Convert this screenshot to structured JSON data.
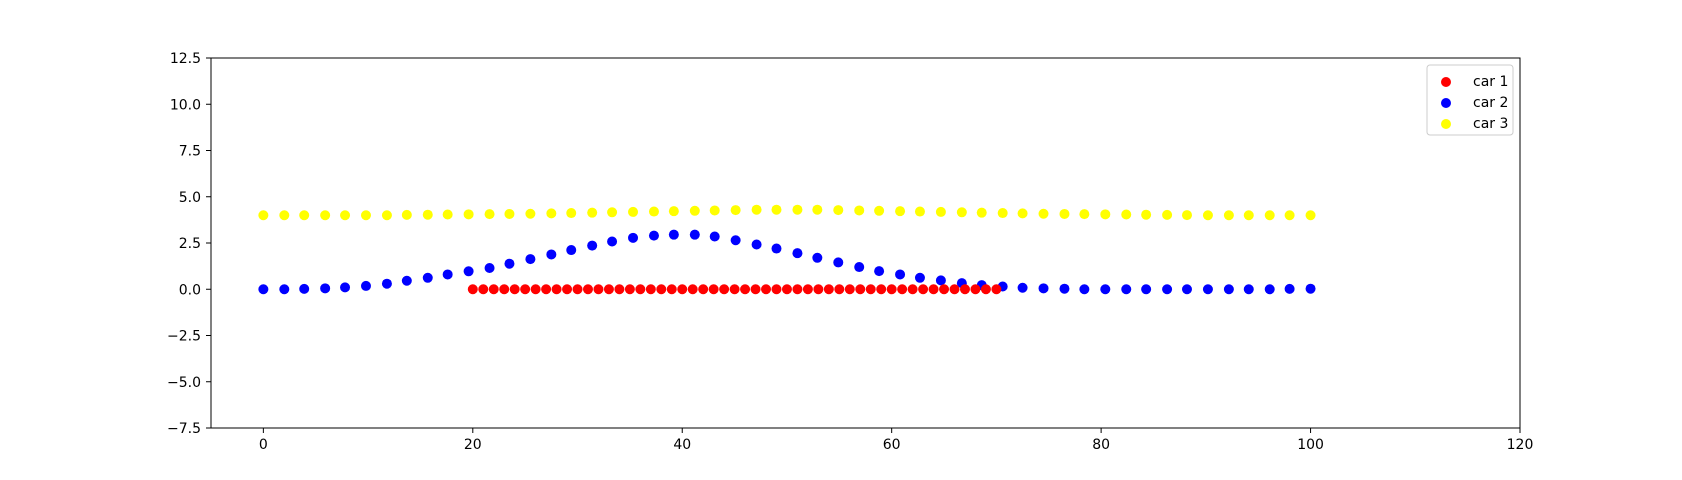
{
  "chart_data": {
    "type": "scatter",
    "title": "",
    "xlabel": "",
    "ylabel": "",
    "xlim": [
      -5,
      120
    ],
    "ylim": [
      -7.5,
      12.5
    ],
    "xticks": [
      "0",
      "20",
      "40",
      "60",
      "80",
      "100",
      "120"
    ],
    "yticks": [
      "12.5",
      "10.0",
      "7.5",
      "5.0",
      "2.5",
      "0.0",
      "−2.5",
      "−5.0",
      "−7.5"
    ],
    "grid": false,
    "legend_position": "top-right",
    "series": [
      {
        "name": "car 1",
        "color": "#ff0000",
        "points": [
          [
            20,
            0
          ],
          [
            21,
            0
          ],
          [
            22,
            0
          ],
          [
            23,
            0
          ],
          [
            24,
            0
          ],
          [
            25,
            0
          ],
          [
            26,
            0
          ],
          [
            27,
            0
          ],
          [
            28,
            0
          ],
          [
            29,
            0
          ],
          [
            30,
            0
          ],
          [
            31,
            0
          ],
          [
            32,
            0
          ],
          [
            33,
            0
          ],
          [
            34,
            0
          ],
          [
            35,
            0
          ],
          [
            36,
            0
          ],
          [
            37,
            0
          ],
          [
            38,
            0
          ],
          [
            39,
            0
          ],
          [
            40,
            0
          ],
          [
            41,
            0
          ],
          [
            42,
            0
          ],
          [
            43,
            0
          ],
          [
            44,
            0
          ],
          [
            45,
            0
          ],
          [
            46,
            0
          ],
          [
            47,
            0
          ],
          [
            48,
            0
          ],
          [
            49,
            0
          ],
          [
            50,
            0
          ],
          [
            51,
            0
          ],
          [
            52,
            0
          ],
          [
            53,
            0
          ],
          [
            54,
            0
          ],
          [
            55,
            0
          ],
          [
            56,
            0
          ],
          [
            57,
            0
          ],
          [
            58,
            0
          ],
          [
            59,
            0
          ],
          [
            60,
            0
          ],
          [
            61,
            0
          ],
          [
            62,
            0
          ],
          [
            63,
            0
          ],
          [
            64,
            0
          ],
          [
            65,
            0
          ],
          [
            66,
            0
          ],
          [
            67,
            0
          ],
          [
            68,
            0
          ],
          [
            69,
            0
          ],
          [
            70,
            0
          ]
        ]
      },
      {
        "name": "car 2",
        "color": "#0000ff",
        "points": [
          [
            0,
            0.0
          ],
          [
            2,
            0.0
          ],
          [
            3.9,
            0.02
          ],
          [
            5.9,
            0.05
          ],
          [
            7.8,
            0.1
          ],
          [
            9.8,
            0.18
          ],
          [
            11.8,
            0.3
          ],
          [
            13.7,
            0.46
          ],
          [
            15.7,
            0.62
          ],
          [
            17.6,
            0.8
          ],
          [
            19.6,
            0.97
          ],
          [
            21.6,
            1.15
          ],
          [
            23.5,
            1.38
          ],
          [
            25.5,
            1.63
          ],
          [
            27.5,
            1.88
          ],
          [
            29.4,
            2.12
          ],
          [
            31.4,
            2.36
          ],
          [
            33.3,
            2.58
          ],
          [
            35.3,
            2.78
          ],
          [
            37.3,
            2.9
          ],
          [
            39.2,
            2.95
          ],
          [
            41.2,
            2.95
          ],
          [
            43.1,
            2.85
          ],
          [
            45.1,
            2.65
          ],
          [
            47.1,
            2.42
          ],
          [
            49,
            2.2
          ],
          [
            51,
            1.95
          ],
          [
            52.9,
            1.7
          ],
          [
            54.9,
            1.45
          ],
          [
            56.9,
            1.2
          ],
          [
            58.8,
            0.98
          ],
          [
            60.8,
            0.8
          ],
          [
            62.7,
            0.62
          ],
          [
            64.7,
            0.48
          ],
          [
            66.7,
            0.33
          ],
          [
            68.6,
            0.22
          ],
          [
            70.6,
            0.15
          ],
          [
            72.5,
            0.08
          ],
          [
            74.5,
            0.05
          ],
          [
            76.5,
            0.03
          ],
          [
            78.4,
            0.0
          ],
          [
            80.4,
            0.0
          ],
          [
            82.4,
            0.0
          ],
          [
            84.3,
            0.0
          ],
          [
            86.3,
            0.0
          ],
          [
            88.2,
            0.0
          ],
          [
            90.2,
            0.0
          ],
          [
            92.2,
            0.0
          ],
          [
            94.1,
            0.0
          ],
          [
            96.1,
            0.0
          ],
          [
            98,
            0.02
          ],
          [
            100,
            0.03
          ]
        ]
      },
      {
        "name": "car 3",
        "color": "#ffff00",
        "points": [
          [
            0,
            4.0
          ],
          [
            2,
            4.0
          ],
          [
            3.9,
            4.0
          ],
          [
            5.9,
            4.0
          ],
          [
            7.8,
            4.0
          ],
          [
            9.8,
            4.0
          ],
          [
            11.8,
            4.0
          ],
          [
            13.7,
            4.02
          ],
          [
            15.7,
            4.03
          ],
          [
            17.6,
            4.04
          ],
          [
            19.6,
            4.05
          ],
          [
            21.6,
            4.06
          ],
          [
            23.5,
            4.07
          ],
          [
            25.5,
            4.08
          ],
          [
            27.5,
            4.1
          ],
          [
            29.4,
            4.12
          ],
          [
            31.4,
            4.14
          ],
          [
            33.3,
            4.16
          ],
          [
            35.3,
            4.18
          ],
          [
            37.3,
            4.2
          ],
          [
            39.2,
            4.22
          ],
          [
            41.2,
            4.24
          ],
          [
            43.1,
            4.26
          ],
          [
            45.1,
            4.28
          ],
          [
            47.1,
            4.3
          ],
          [
            49,
            4.3
          ],
          [
            51,
            4.3
          ],
          [
            52.9,
            4.3
          ],
          [
            54.9,
            4.28
          ],
          [
            56.9,
            4.26
          ],
          [
            58.8,
            4.24
          ],
          [
            60.8,
            4.22
          ],
          [
            62.7,
            4.2
          ],
          [
            64.7,
            4.18
          ],
          [
            66.7,
            4.16
          ],
          [
            68.6,
            4.14
          ],
          [
            70.6,
            4.12
          ],
          [
            72.5,
            4.1
          ],
          [
            74.5,
            4.08
          ],
          [
            76.5,
            4.07
          ],
          [
            78.4,
            4.06
          ],
          [
            80.4,
            4.05
          ],
          [
            82.4,
            4.04
          ],
          [
            84.3,
            4.03
          ],
          [
            86.3,
            4.02
          ],
          [
            88.2,
            4.01
          ],
          [
            90.2,
            4.0
          ],
          [
            92.2,
            4.0
          ],
          [
            94.1,
            4.0
          ],
          [
            96.1,
            4.0
          ],
          [
            98,
            4.0
          ],
          [
            100,
            4.0
          ]
        ]
      }
    ]
  }
}
